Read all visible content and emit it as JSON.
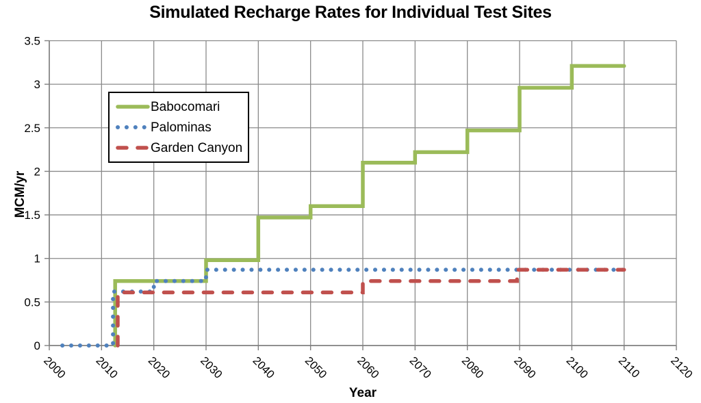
{
  "palette": {
    "gridline": "#8a8a8a",
    "axis": "#7f7f7f",
    "text": "#000000",
    "legend_border": "#000000",
    "background": "#ffffff"
  },
  "chart_data": {
    "type": "line",
    "title": "Simulated Recharge Rates for Individual Test Sites",
    "xlabel": "Year",
    "ylabel": "MCM/yr",
    "xlim": [
      2000,
      2120
    ],
    "ylim": [
      0,
      3.5
    ],
    "x_ticks": [
      2000,
      2010,
      2020,
      2030,
      2040,
      2050,
      2060,
      2070,
      2080,
      2090,
      2100,
      2110,
      2120
    ],
    "y_ticks": [
      0,
      0.5,
      1,
      1.5,
      2,
      2.5,
      3,
      3.5
    ],
    "grid": true,
    "legend_position": "upper-left-inside",
    "series": [
      {
        "name": "Babocomari",
        "color": "#9BBB59",
        "style": "solid",
        "points": [
          [
            2012.6,
            0
          ],
          [
            2012.6,
            0.74
          ],
          [
            2030,
            0.74
          ],
          [
            2030,
            0.98
          ],
          [
            2040,
            0.98
          ],
          [
            2040,
            1.47
          ],
          [
            2050,
            1.47
          ],
          [
            2050,
            1.6
          ],
          [
            2060,
            1.6
          ],
          [
            2060,
            2.1
          ],
          [
            2070,
            2.1
          ],
          [
            2070,
            2.22
          ],
          [
            2080,
            2.22
          ],
          [
            2080,
            2.47
          ],
          [
            2090,
            2.47
          ],
          [
            2090,
            2.96
          ],
          [
            2100,
            2.96
          ],
          [
            2100,
            3.21
          ],
          [
            2110,
            3.21
          ]
        ]
      },
      {
        "name": "Palominas",
        "color": "#4F81BD",
        "style": "dotted",
        "points": [
          [
            2002.5,
            0
          ],
          [
            2012.2,
            0
          ],
          [
            2012.2,
            0.62
          ],
          [
            2020,
            0.62
          ],
          [
            2020,
            0.74
          ],
          [
            2030,
            0.74
          ],
          [
            2030,
            0.87
          ],
          [
            2110,
            0.87
          ]
        ]
      },
      {
        "name": "Garden Canyon",
        "color": "#C0504D",
        "style": "dashed",
        "points": [
          [
            2013.1,
            0
          ],
          [
            2013.1,
            0.61
          ],
          [
            2060,
            0.61
          ],
          [
            2060,
            0.74
          ],
          [
            2089.5,
            0.74
          ],
          [
            2089.5,
            0.87
          ],
          [
            2110,
            0.87
          ]
        ]
      }
    ]
  }
}
